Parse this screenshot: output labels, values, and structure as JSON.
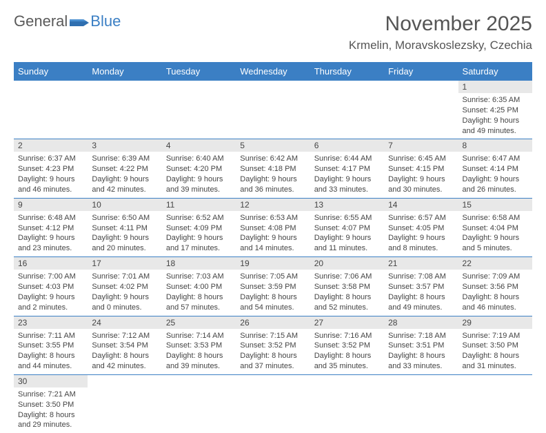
{
  "logo": {
    "text1": "General",
    "text2": "Blue"
  },
  "title": "November 2025",
  "location": "Krmelin, Moravskoslezsky, Czechia",
  "colors": {
    "header_bg": "#3b7fc4",
    "header_fg": "#ffffff",
    "daynum_bg": "#e8e8e8",
    "border": "#3b7fc4",
    "text": "#444444"
  },
  "weekdays": [
    "Sunday",
    "Monday",
    "Tuesday",
    "Wednesday",
    "Thursday",
    "Friday",
    "Saturday"
  ],
  "weeks": [
    [
      null,
      null,
      null,
      null,
      null,
      null,
      {
        "n": "1",
        "sr": "6:35 AM",
        "ss": "4:25 PM",
        "dl": "9 hours and 49 minutes."
      }
    ],
    [
      {
        "n": "2",
        "sr": "6:37 AM",
        "ss": "4:23 PM",
        "dl": "9 hours and 46 minutes."
      },
      {
        "n": "3",
        "sr": "6:39 AM",
        "ss": "4:22 PM",
        "dl": "9 hours and 42 minutes."
      },
      {
        "n": "4",
        "sr": "6:40 AM",
        "ss": "4:20 PM",
        "dl": "9 hours and 39 minutes."
      },
      {
        "n": "5",
        "sr": "6:42 AM",
        "ss": "4:18 PM",
        "dl": "9 hours and 36 minutes."
      },
      {
        "n": "6",
        "sr": "6:44 AM",
        "ss": "4:17 PM",
        "dl": "9 hours and 33 minutes."
      },
      {
        "n": "7",
        "sr": "6:45 AM",
        "ss": "4:15 PM",
        "dl": "9 hours and 30 minutes."
      },
      {
        "n": "8",
        "sr": "6:47 AM",
        "ss": "4:14 PM",
        "dl": "9 hours and 26 minutes."
      }
    ],
    [
      {
        "n": "9",
        "sr": "6:48 AM",
        "ss": "4:12 PM",
        "dl": "9 hours and 23 minutes."
      },
      {
        "n": "10",
        "sr": "6:50 AM",
        "ss": "4:11 PM",
        "dl": "9 hours and 20 minutes."
      },
      {
        "n": "11",
        "sr": "6:52 AM",
        "ss": "4:09 PM",
        "dl": "9 hours and 17 minutes."
      },
      {
        "n": "12",
        "sr": "6:53 AM",
        "ss": "4:08 PM",
        "dl": "9 hours and 14 minutes."
      },
      {
        "n": "13",
        "sr": "6:55 AM",
        "ss": "4:07 PM",
        "dl": "9 hours and 11 minutes."
      },
      {
        "n": "14",
        "sr": "6:57 AM",
        "ss": "4:05 PM",
        "dl": "9 hours and 8 minutes."
      },
      {
        "n": "15",
        "sr": "6:58 AM",
        "ss": "4:04 PM",
        "dl": "9 hours and 5 minutes."
      }
    ],
    [
      {
        "n": "16",
        "sr": "7:00 AM",
        "ss": "4:03 PM",
        "dl": "9 hours and 2 minutes."
      },
      {
        "n": "17",
        "sr": "7:01 AM",
        "ss": "4:02 PM",
        "dl": "9 hours and 0 minutes."
      },
      {
        "n": "18",
        "sr": "7:03 AM",
        "ss": "4:00 PM",
        "dl": "8 hours and 57 minutes."
      },
      {
        "n": "19",
        "sr": "7:05 AM",
        "ss": "3:59 PM",
        "dl": "8 hours and 54 minutes."
      },
      {
        "n": "20",
        "sr": "7:06 AM",
        "ss": "3:58 PM",
        "dl": "8 hours and 52 minutes."
      },
      {
        "n": "21",
        "sr": "7:08 AM",
        "ss": "3:57 PM",
        "dl": "8 hours and 49 minutes."
      },
      {
        "n": "22",
        "sr": "7:09 AM",
        "ss": "3:56 PM",
        "dl": "8 hours and 46 minutes."
      }
    ],
    [
      {
        "n": "23",
        "sr": "7:11 AM",
        "ss": "3:55 PM",
        "dl": "8 hours and 44 minutes."
      },
      {
        "n": "24",
        "sr": "7:12 AM",
        "ss": "3:54 PM",
        "dl": "8 hours and 42 minutes."
      },
      {
        "n": "25",
        "sr": "7:14 AM",
        "ss": "3:53 PM",
        "dl": "8 hours and 39 minutes."
      },
      {
        "n": "26",
        "sr": "7:15 AM",
        "ss": "3:52 PM",
        "dl": "8 hours and 37 minutes."
      },
      {
        "n": "27",
        "sr": "7:16 AM",
        "ss": "3:52 PM",
        "dl": "8 hours and 35 minutes."
      },
      {
        "n": "28",
        "sr": "7:18 AM",
        "ss": "3:51 PM",
        "dl": "8 hours and 33 minutes."
      },
      {
        "n": "29",
        "sr": "7:19 AM",
        "ss": "3:50 PM",
        "dl": "8 hours and 31 minutes."
      }
    ],
    [
      {
        "n": "30",
        "sr": "7:21 AM",
        "ss": "3:50 PM",
        "dl": "8 hours and 29 minutes."
      },
      null,
      null,
      null,
      null,
      null,
      null
    ]
  ],
  "labels": {
    "sunrise": "Sunrise:",
    "sunset": "Sunset:",
    "daylight": "Daylight:"
  }
}
